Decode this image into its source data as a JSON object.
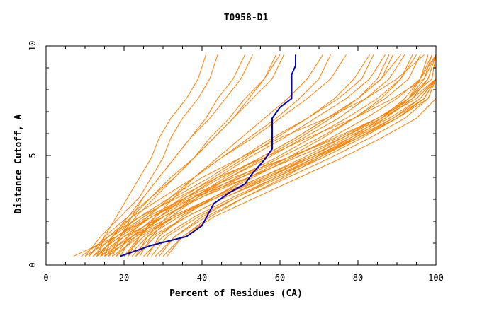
{
  "chart_data": {
    "type": "line",
    "title": "T0958-D1",
    "xlabel": "Percent of Residues (CA)",
    "ylabel": "Distance Cutoff, A",
    "xlim": [
      0,
      100
    ],
    "ylim": [
      0,
      10
    ],
    "x_ticks": [
      "0",
      "20",
      "40",
      "60",
      "80",
      "100"
    ],
    "y_ticks": [
      "0",
      "5",
      "10"
    ],
    "grid": false,
    "colors": {
      "highlight": "#0000cc",
      "others": "#ff8000"
    },
    "highlight_series": {
      "x": [
        19,
        27,
        36,
        40,
        43,
        47,
        51,
        53,
        56,
        58,
        58,
        60,
        63,
        63,
        64,
        64
      ],
      "y": [
        0.4,
        0.9,
        1.3,
        1.8,
        2.8,
        3.3,
        3.7,
        4.2,
        4.8,
        5.3,
        6.7,
        7.2,
        7.6,
        8.7,
        9.1,
        9.6
      ]
    },
    "series_x": [
      [
        7,
        18,
        27,
        37,
        50,
        62,
        75,
        85,
        93,
        99,
        100
      ],
      [
        9,
        16,
        22,
        30,
        38,
        45,
        53,
        60,
        67,
        73,
        77
      ],
      [
        10,
        18,
        26,
        36,
        48,
        62,
        74,
        85,
        94,
        100,
        100
      ],
      [
        10,
        14,
        19,
        24,
        27,
        30,
        32,
        35,
        39,
        42,
        44
      ],
      [
        11,
        16,
        24,
        32,
        40,
        50,
        60,
        72,
        82,
        90,
        97
      ],
      [
        11,
        15,
        21,
        27,
        32,
        38,
        43,
        48,
        53,
        58,
        61
      ],
      [
        12,
        17,
        24,
        34,
        44,
        56,
        67,
        79,
        89,
        97,
        100
      ],
      [
        12,
        19,
        27,
        38,
        52,
        64,
        76,
        86,
        93,
        96,
        100
      ],
      [
        13,
        15,
        18,
        21,
        24,
        27,
        29,
        32,
        36,
        39,
        41
      ],
      [
        13,
        18,
        25,
        33,
        42,
        50,
        58,
        67,
        75,
        81,
        84
      ],
      [
        13,
        20,
        30,
        40,
        52,
        64,
        76,
        86,
        95,
        100,
        100
      ],
      [
        14,
        17,
        22,
        27,
        33,
        38,
        42,
        47,
        51,
        56,
        59
      ],
      [
        14,
        20,
        27,
        36,
        45,
        55,
        64,
        72,
        80,
        85,
        88
      ],
      [
        14,
        22,
        32,
        43,
        55,
        67,
        78,
        88,
        96,
        100,
        100
      ],
      [
        15,
        17,
        21,
        25,
        29,
        33,
        37,
        42,
        46,
        50,
        53
      ],
      [
        15,
        21,
        29,
        38,
        47,
        57,
        66,
        75,
        82,
        88,
        92
      ],
      [
        15,
        23,
        33,
        44,
        57,
        68,
        80,
        90,
        98,
        100,
        100
      ],
      [
        16,
        19,
        23,
        28,
        33,
        38,
        43,
        48,
        52,
        56,
        60
      ],
      [
        16,
        22,
        30,
        40,
        50,
        60,
        70,
        79,
        87,
        93,
        96
      ],
      [
        17,
        19,
        22,
        25,
        29,
        33,
        37,
        41,
        44,
        48,
        51
      ],
      [
        17,
        24,
        33,
        44,
        56,
        68,
        79,
        89,
        97,
        100,
        100
      ],
      [
        18,
        21,
        26,
        32,
        38,
        45,
        52,
        59,
        65,
        70,
        73
      ],
      [
        18,
        23,
        30,
        39,
        49,
        59,
        68,
        77,
        85,
        91,
        95
      ],
      [
        19,
        22,
        28,
        35,
        43,
        51,
        59,
        67,
        74,
        79,
        83
      ],
      [
        20,
        25,
        33,
        43,
        53,
        63,
        73,
        82,
        90,
        96,
        99
      ],
      [
        20,
        24,
        29,
        36,
        44,
        52,
        61,
        69,
        77,
        83,
        87
      ],
      [
        21,
        26,
        34,
        44,
        55,
        66,
        76,
        85,
        93,
        98,
        100
      ],
      [
        21,
        24,
        28,
        33,
        38,
        44,
        50,
        56,
        62,
        67,
        71
      ],
      [
        22,
        27,
        36,
        46,
        58,
        69,
        80,
        90,
        97,
        100,
        100
      ],
      [
        23,
        26,
        31,
        38,
        46,
        55,
        64,
        72,
        80,
        86,
        91
      ],
      [
        23,
        28,
        36,
        46,
        57,
        67,
        77,
        87,
        94,
        98,
        100
      ],
      [
        24,
        27,
        32,
        39,
        47,
        56,
        65,
        73,
        80,
        86,
        89
      ],
      [
        25,
        30,
        38,
        48,
        59,
        70,
        80,
        89,
        96,
        100,
        100
      ],
      [
        26,
        29,
        35,
        43,
        52,
        62,
        71,
        79,
        86,
        91,
        94
      ],
      [
        27,
        31,
        39,
        49,
        60,
        71,
        81,
        90,
        97,
        100,
        100
      ],
      [
        28,
        33,
        41,
        51,
        62,
        73,
        83,
        92,
        98,
        100,
        100
      ],
      [
        29,
        33,
        40,
        49,
        59,
        69,
        78,
        86,
        92,
        96,
        98
      ],
      [
        30,
        35,
        43,
        54,
        65,
        76,
        86,
        95,
        100,
        100,
        100
      ],
      [
        31,
        35,
        42,
        51,
        61,
        70,
        79,
        87,
        93,
        97,
        99
      ]
    ],
    "series_y": [
      0.4,
      1.3,
      2.2,
      3.1,
      4.0,
      4.9,
      5.8,
      6.7,
      7.6,
      8.5,
      9.6
    ]
  }
}
